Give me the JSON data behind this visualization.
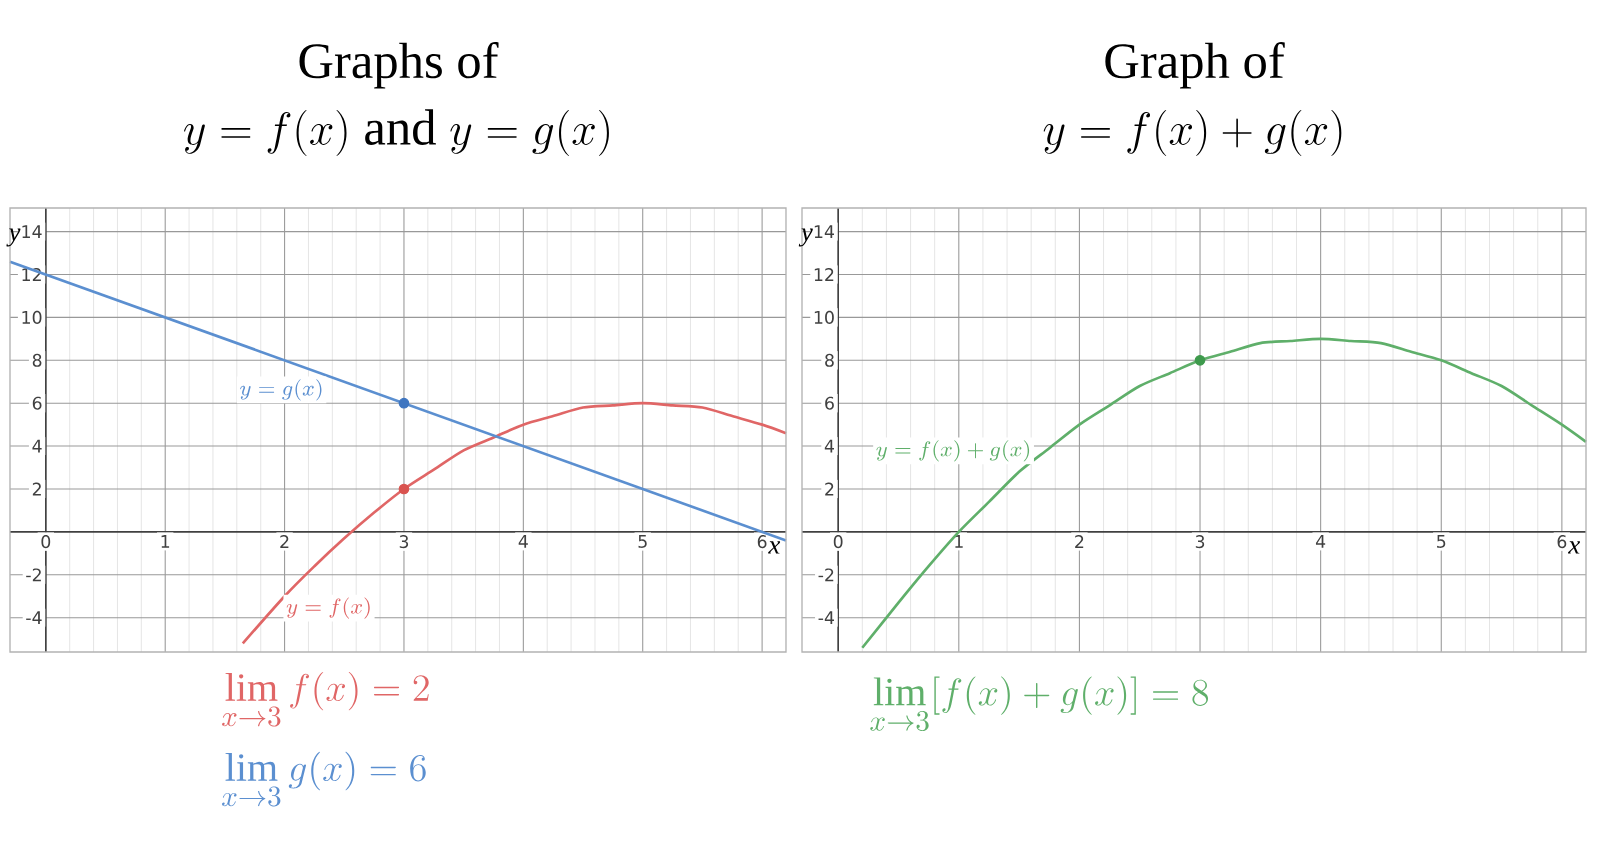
{
  "chart_data": [
    {
      "type": "line",
      "title": "Graphs of",
      "subtitle": "y = f(x) \\text{ and } y = g(x)",
      "xlabel": "x",
      "ylabel": "y",
      "xlim": [
        -0.3,
        6.2
      ],
      "ylim": [
        -5.6,
        15.1
      ],
      "xticks": [
        0,
        1,
        2,
        3,
        4,
        5,
        6
      ],
      "yticks": [
        -4,
        -2,
        2,
        4,
        6,
        8,
        10,
        12,
        14
      ],
      "grid": true,
      "series": [
        {
          "name": "y = f(x)",
          "color": "#e06666",
          "x": [
            1.65,
            2,
            2.25,
            2.5,
            2.75,
            3,
            3.25,
            3.5,
            3.75,
            4,
            4.25,
            4.5,
            4.75,
            5,
            5.25,
            5.5,
            5.75,
            6,
            6.2
          ],
          "values": [
            -5.2,
            -3,
            -1.6,
            -0.3,
            0.9,
            2,
            2.9,
            3.8,
            4.4,
            5,
            5.4,
            5.8,
            5.9,
            6,
            5.9,
            5.8,
            5.4,
            5,
            4.6
          ]
        },
        {
          "name": "y = g(x)",
          "color": "#5b8fd0",
          "x": [
            -0.3,
            6.2
          ],
          "values": [
            12.6,
            -0.4
          ]
        },
        {
          "type": "scatter",
          "color": "#d9534f",
          "x": [
            3
          ],
          "values": [
            2
          ]
        },
        {
          "type": "scatter",
          "color": "#3f76c0",
          "x": [
            3
          ],
          "values": [
            6
          ]
        }
      ],
      "annotations": [
        "\\lim_{x\\to 3} f(x) = 2",
        "\\lim_{x\\to 3} g(x) = 6"
      ]
    },
    {
      "type": "line",
      "title": "Graph of",
      "subtitle": "y = f(x) + g(x)",
      "xlabel": "x",
      "ylabel": "y",
      "xlim": [
        -0.3,
        6.2
      ],
      "ylim": [
        -5.6,
        15.1
      ],
      "xticks": [
        0,
        1,
        2,
        3,
        4,
        5,
        6
      ],
      "yticks": [
        -4,
        -2,
        2,
        4,
        6,
        8,
        10,
        12,
        14
      ],
      "grid": true,
      "series": [
        {
          "name": "y = f(x) + g(x)",
          "color": "#5faf6a",
          "x": [
            0.2,
            0.5,
            0.75,
            1,
            1.25,
            1.5,
            1.75,
            2,
            2.25,
            2.5,
            2.75,
            3,
            3.25,
            3.5,
            3.75,
            4,
            4.25,
            4.5,
            4.75,
            5,
            5.25,
            5.5,
            5.75,
            6,
            6.2
          ],
          "values": [
            -5.4,
            -3.3,
            -1.6,
            0,
            1.4,
            2.8,
            3.9,
            5,
            5.9,
            6.8,
            7.4,
            8,
            8.4,
            8.8,
            8.9,
            9,
            8.9,
            8.8,
            8.4,
            8,
            7.4,
            6.8,
            5.9,
            5,
            4.2
          ]
        },
        {
          "type": "scatter",
          "color": "#3e9a4c",
          "x": [
            3
          ],
          "values": [
            8
          ]
        }
      ],
      "annotations": [
        "\\lim_{x\\to 3} [f(x) + g(x)] = 8"
      ]
    }
  ]
}
